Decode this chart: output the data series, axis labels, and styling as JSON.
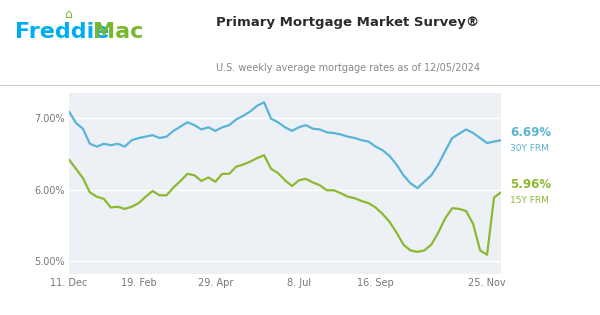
{
  "title": "Primary Mortgage Market Survey®",
  "subtitle": "U.S. weekly average mortgage rates as of 12/05/2024",
  "title_color": "#2b2b2b",
  "subtitle_color": "#888888",
  "freddie_color": "#00aeef",
  "mac_color": "#79b82c",
  "plot_bg": "#edf1f5",
  "line30_color": "#5ab4d6",
  "line15_color": "#8db832",
  "label30_color": "#5ab4d6",
  "label15_color": "#8db832",
  "label30_value": "6.69%",
  "label30_name": "30Y FRM",
  "label15_value": "5.96%",
  "label15_name": "15Y FRM",
  "yticks": [
    5.0,
    6.0,
    7.0
  ],
  "ytick_labels": [
    "5.00%",
    "6.00%",
    "7.00%"
  ],
  "xtick_labels": [
    "11. Dec",
    "19. Feb",
    "29. Apr",
    "8. Jul",
    "16. Sep",
    "25. Nov"
  ],
  "xtick_positions": [
    0,
    10,
    21,
    33,
    44,
    60
  ],
  "ylim": [
    4.82,
    7.35
  ],
  "xlim_max": 62,
  "rate30": [
    7.09,
    6.93,
    6.85,
    6.64,
    6.6,
    6.64,
    6.62,
    6.64,
    6.6,
    6.69,
    6.72,
    6.74,
    6.76,
    6.72,
    6.74,
    6.82,
    6.88,
    6.94,
    6.9,
    6.84,
    6.87,
    6.82,
    6.87,
    6.9,
    6.98,
    7.03,
    7.09,
    7.17,
    7.22,
    6.99,
    6.94,
    6.87,
    6.82,
    6.87,
    6.9,
    6.85,
    6.84,
    6.8,
    6.79,
    6.77,
    6.74,
    6.72,
    6.69,
    6.67,
    6.6,
    6.55,
    6.47,
    6.35,
    6.2,
    6.09,
    6.02,
    6.11,
    6.2,
    6.35,
    6.54,
    6.72,
    6.78,
    6.84,
    6.79,
    6.72,
    6.65,
    6.67,
    6.69
  ],
  "rate15": [
    6.42,
    6.29,
    6.16,
    5.96,
    5.9,
    5.87,
    5.75,
    5.76,
    5.73,
    5.76,
    5.81,
    5.9,
    5.98,
    5.92,
    5.92,
    6.03,
    6.12,
    6.22,
    6.2,
    6.12,
    6.17,
    6.11,
    6.22,
    6.22,
    6.32,
    6.35,
    6.39,
    6.44,
    6.48,
    6.29,
    6.23,
    6.13,
    6.05,
    6.13,
    6.15,
    6.1,
    6.06,
    5.99,
    5.99,
    5.95,
    5.9,
    5.88,
    5.84,
    5.81,
    5.75,
    5.66,
    5.55,
    5.4,
    5.23,
    5.15,
    5.13,
    5.15,
    5.23,
    5.4,
    5.6,
    5.74,
    5.73,
    5.7,
    5.52,
    5.15,
    5.09,
    5.89,
    5.96
  ]
}
